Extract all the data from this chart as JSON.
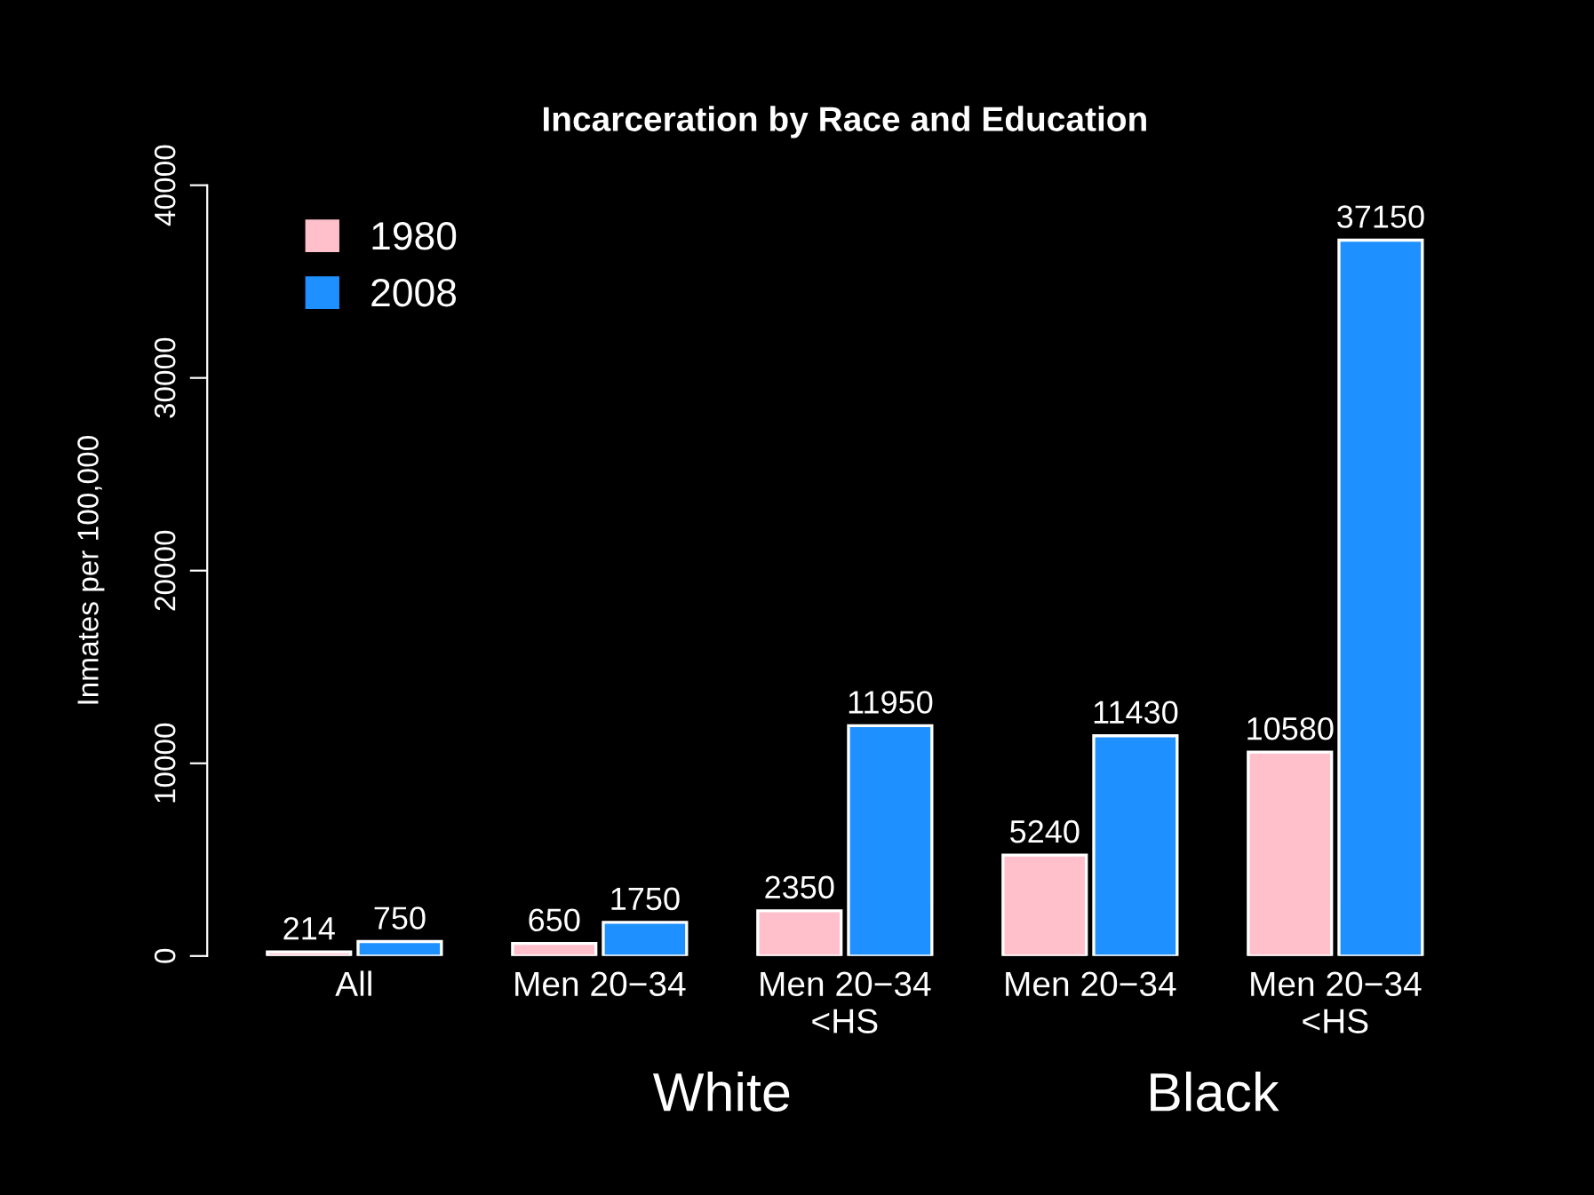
{
  "chart_data": {
    "type": "bar",
    "title": "Incarceration by Race and Education",
    "ylabel": "Inmates per 100,000",
    "categories": [
      "All",
      "Men 20−34",
      "Men 20−34\n<HS",
      "Men 20−34",
      "Men 20−34\n<HS"
    ],
    "series": [
      {
        "name": "1980",
        "color": "#ffc0cb",
        "values": [
          214,
          650,
          2350,
          5240,
          10580
        ]
      },
      {
        "name": "2008",
        "color": "#1e90ff",
        "values": [
          750,
          1750,
          11950,
          11430,
          37150
        ]
      }
    ],
    "ylim": [
      0,
      40000
    ],
    "yticks": [
      0,
      10000,
      20000,
      30000,
      40000
    ],
    "data_labels": true,
    "legend": "top left",
    "grid": false,
    "annotations": [
      "White",
      "Black"
    ]
  }
}
